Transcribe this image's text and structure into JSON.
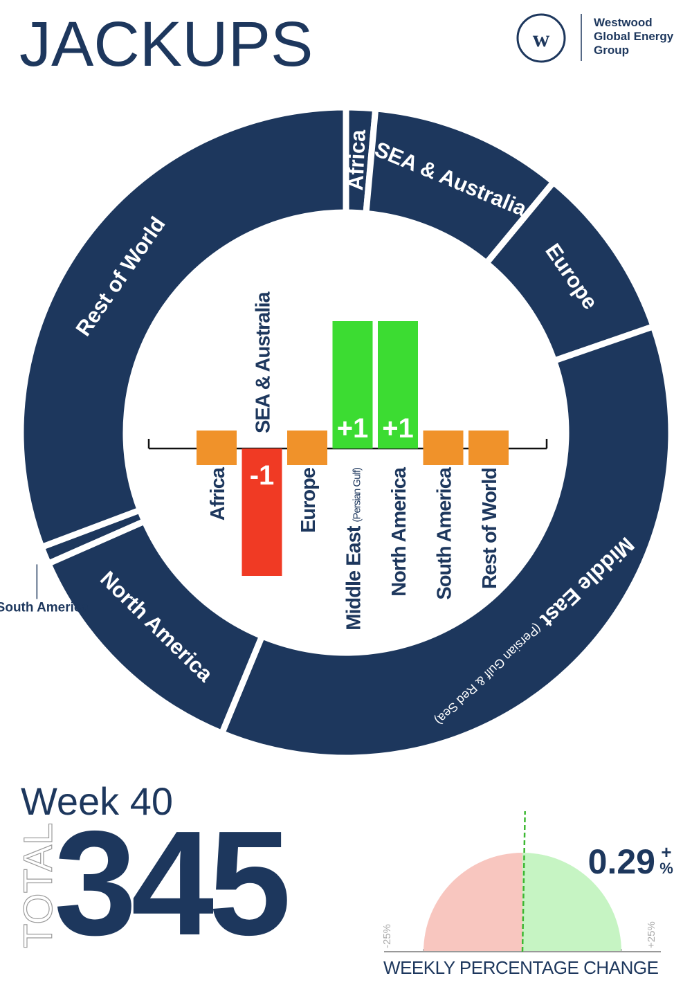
{
  "header": {
    "title": "JACKUPS",
    "logo_lines": [
      "Westwood",
      "Global Energy",
      "Group"
    ]
  },
  "summary": {
    "week": "Week 40",
    "total_label": "TOTAL",
    "total": 345
  },
  "chart_data": [
    {
      "type": "donut",
      "color": "#1d375d",
      "categories": [
        "Africa",
        "SEA & Australia",
        "Europe",
        "Middle East",
        "North America",
        "South America",
        "Rest of World"
      ],
      "sublabels": [
        null,
        null,
        null,
        "(Persian Gulf & Red Sea)",
        null,
        null,
        null
      ],
      "values": [
        5,
        33,
        30,
        126,
        42,
        3,
        106
      ]
    },
    {
      "type": "bar",
      "categories": [
        "Africa",
        "SEA & Australia",
        "Europe",
        "Middle East",
        "North America",
        "South America",
        "Rest of World"
      ],
      "sublabels": [
        null,
        null,
        null,
        "(Persian Gulf)",
        null,
        null,
        null
      ],
      "values": [
        0,
        -1,
        0,
        1,
        1,
        0,
        0
      ],
      "value_labels": [
        null,
        "-1",
        null,
        "+1",
        "+1",
        null,
        null
      ],
      "ylim": [
        -1,
        1
      ],
      "colors": {
        "positive": "#3cdc32",
        "negative": "#f03a24",
        "zero": "#f0922a"
      }
    },
    {
      "type": "gauge",
      "value": 0.29,
      "value_label": "0.29",
      "sign": "+",
      "unit": "%",
      "xlim": [
        -25,
        25
      ],
      "xticks": [
        {
          "value": -25,
          "label": "-25%"
        },
        {
          "value": 25,
          "label": "+25%"
        }
      ],
      "axis_label": "WEEKLY PERCENTAGE CHANGE",
      "colors": {
        "negative": "#f8c6bf",
        "positive": "#c6f4c3",
        "needle": "#3cb832"
      }
    }
  ]
}
